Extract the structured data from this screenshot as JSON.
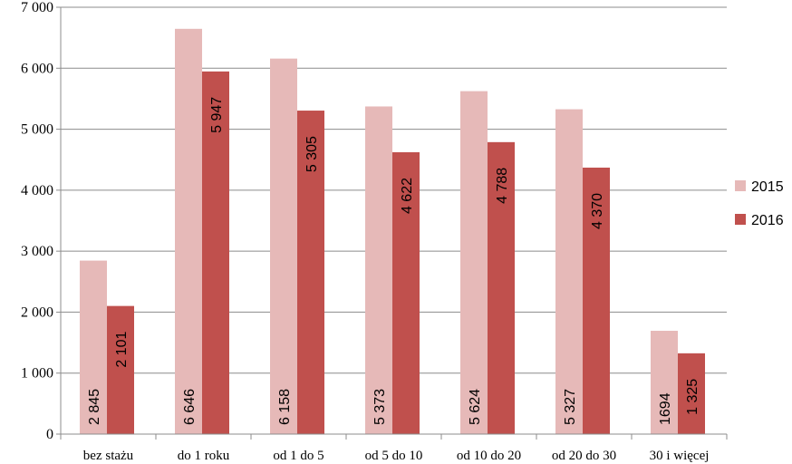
{
  "chart_data": {
    "type": "bar",
    "title": "",
    "xlabel": "",
    "ylabel": "",
    "ylim": [
      0,
      7000
    ],
    "yticks": [
      0,
      1000,
      2000,
      3000,
      4000,
      5000,
      6000,
      7000
    ],
    "ytick_labels": [
      "0",
      "1 000",
      "2 000",
      "3 000",
      "4 000",
      "5 000",
      "6 000",
      "7 000"
    ],
    "grid": true,
    "legend_position": "right",
    "categories": [
      "bez stażu",
      "do 1 roku",
      "od 1  do 5",
      "od 5  do 10",
      "od 10  do 20",
      "od 20  do 30",
      "30 i więcej"
    ],
    "series": [
      {
        "name": "2015",
        "color": "#e6b9b8",
        "values": [
          2845,
          6646,
          6158,
          5373,
          5624,
          5327,
          1694
        ],
        "labels": [
          "2 845",
          "6 646",
          "6 158",
          "5 373",
          "5 624",
          "5 327",
          "1694"
        ]
      },
      {
        "name": "2016",
        "color": "#c0504d",
        "values": [
          2101,
          5947,
          5305,
          4622,
          4788,
          4370,
          1325
        ],
        "labels": [
          "2 101",
          "5 947",
          "5 305",
          "4 622",
          "4 788",
          "4 370",
          "1 325"
        ]
      }
    ]
  }
}
